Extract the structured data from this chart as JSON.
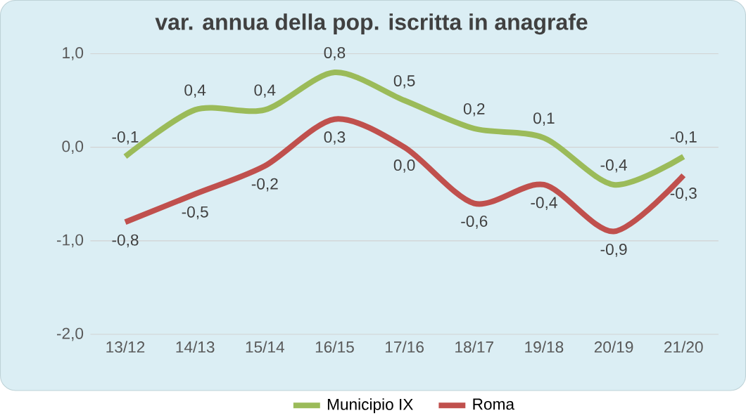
{
  "chart_data": {
    "type": "line",
    "title": "var. annua della pop. iscritta in anagrafe",
    "categories": [
      "13/12",
      "14/13",
      "15/14",
      "16/15",
      "17/16",
      "18/17",
      "19/18",
      "20/19",
      "21/20"
    ],
    "series": [
      {
        "name": "Municipio IX",
        "color": "#9bbb59",
        "values": [
          -0.1,
          0.4,
          0.4,
          0.8,
          0.5,
          0.2,
          0.1,
          -0.4,
          -0.1
        ],
        "value_labels": [
          "-0,1",
          "0,4",
          "0,4",
          "0,8",
          "0,5",
          "0,2",
          "0,1",
          "-0,4",
          "-0,1"
        ]
      },
      {
        "name": "Roma",
        "color": "#c0504d",
        "values": [
          -0.8,
          -0.5,
          -0.2,
          0.3,
          0.0,
          -0.6,
          -0.4,
          -0.9,
          -0.3
        ],
        "value_labels": [
          "-0,8",
          "-0,5",
          "-0,2",
          "0,3",
          "0,0",
          "-0,6",
          "-0,4",
          "-0,9",
          "-0,3"
        ]
      }
    ],
    "ylim": [
      -2.0,
      1.0
    ],
    "yticks": [
      {
        "value": -2.0,
        "label": "-2,0"
      },
      {
        "value": -1.0,
        "label": "-1,0"
      },
      {
        "value": 0.0,
        "label": "0,0"
      },
      {
        "value": 1.0,
        "label": "1,0"
      }
    ],
    "grid": "y",
    "legend": "bottom"
  }
}
